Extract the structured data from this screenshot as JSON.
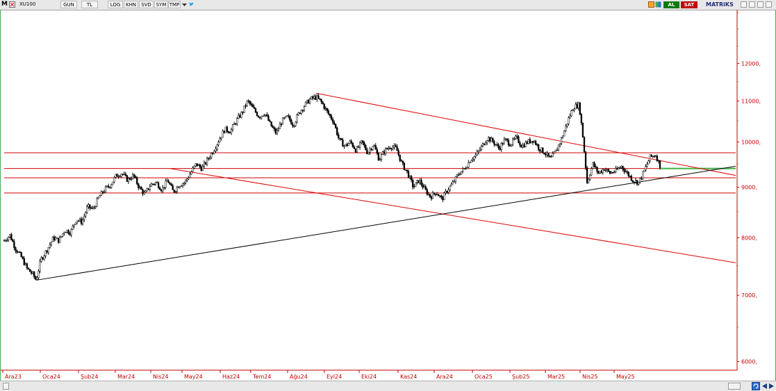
{
  "toolbar": {
    "app_letter": "M",
    "symbol": "XU100",
    "buttons": [
      {
        "name": "gun-button",
        "label": "GUN"
      },
      {
        "name": "tl-button",
        "label": "TL"
      },
      {
        "name": "log-button",
        "label": "LOG"
      },
      {
        "name": "khn-button",
        "label": "KHN"
      },
      {
        "name": "svd-button",
        "label": "SVD"
      },
      {
        "name": "sym-button",
        "label": "SYM"
      },
      {
        "name": "tmp-button",
        "label": "TMP"
      }
    ],
    "buy_label": "AL",
    "sell_label": "SAT",
    "brand": "MATRiKS"
  },
  "colors": {
    "candle": "#000000",
    "trendline_red": "#e00000",
    "support_line_black": "#000000",
    "horizontal_red": "#d00000",
    "current_green": "#3cb043",
    "axis_text": "#c00000",
    "frame_green": "#4caf50"
  },
  "chart_data": {
    "type": "candlestick",
    "symbol": "XU100",
    "x_ticks": [
      "Ara23",
      "Oca24",
      "Şub24",
      "Mar24",
      "Nis24",
      "May24",
      "Haz24",
      "Tem24",
      "Ağu24",
      "Eyl24",
      "Eki24",
      "Kas24",
      "Ara24",
      "Oca25",
      "Şub25",
      "Mar25",
      "Nis25",
      "May25"
    ],
    "y_ticks": [
      {
        "value": 6000,
        "label": "6000,"
      },
      {
        "value": 7000,
        "label": "7000,"
      },
      {
        "value": 8000,
        "label": "8000,"
      },
      {
        "value": 9000,
        "label": "9000,"
      },
      {
        "value": 10000,
        "label": "10000,"
      },
      {
        "value": 11000,
        "label": "11000,"
      },
      {
        "value": 12000,
        "label": "12000,"
      }
    ],
    "y_scale": "log",
    "ylim": [
      5900,
      13600
    ],
    "close_series": [
      {
        "t": 0.0,
        "v": 7950
      },
      {
        "t": 0.5,
        "v": 8050
      },
      {
        "t": 1.0,
        "v": 7800
      },
      {
        "t": 1.5,
        "v": 7650
      },
      {
        "t": 2.0,
        "v": 7450
      },
      {
        "t": 2.5,
        "v": 7350
      },
      {
        "t": 2.8,
        "v": 7250
      },
      {
        "t": 3.2,
        "v": 7600
      },
      {
        "t": 3.8,
        "v": 7800
      },
      {
        "t": 4.3,
        "v": 8000
      },
      {
        "t": 4.8,
        "v": 7950
      },
      {
        "t": 5.3,
        "v": 8150
      },
      {
        "t": 5.8,
        "v": 8100
      },
      {
        "t": 6.3,
        "v": 8350
      },
      {
        "t": 6.8,
        "v": 8300
      },
      {
        "t": 7.3,
        "v": 8600
      },
      {
        "t": 7.8,
        "v": 8550
      },
      {
        "t": 8.3,
        "v": 8800
      },
      {
        "t": 8.8,
        "v": 8950
      },
      {
        "t": 9.3,
        "v": 9050
      },
      {
        "t": 9.8,
        "v": 9250
      },
      {
        "t": 10.3,
        "v": 9300
      },
      {
        "t": 10.8,
        "v": 9150
      },
      {
        "t": 11.3,
        "v": 9250
      },
      {
        "t": 11.8,
        "v": 9000
      },
      {
        "t": 12.3,
        "v": 8850
      },
      {
        "t": 12.8,
        "v": 9050
      },
      {
        "t": 13.3,
        "v": 9100
      },
      {
        "t": 13.8,
        "v": 8950
      },
      {
        "t": 14.3,
        "v": 9150
      },
      {
        "t": 14.8,
        "v": 8900
      },
      {
        "t": 15.3,
        "v": 9050
      },
      {
        "t": 15.8,
        "v": 9100
      },
      {
        "t": 16.3,
        "v": 9300
      },
      {
        "t": 16.8,
        "v": 9500
      },
      {
        "t": 17.3,
        "v": 9400
      },
      {
        "t": 17.8,
        "v": 9600
      },
      {
        "t": 18.3,
        "v": 9800
      },
      {
        "t": 18.8,
        "v": 10050
      },
      {
        "t": 19.3,
        "v": 10300
      },
      {
        "t": 19.8,
        "v": 10250
      },
      {
        "t": 20.3,
        "v": 10500
      },
      {
        "t": 20.8,
        "v": 10700
      },
      {
        "t": 21.3,
        "v": 11000
      },
      {
        "t": 21.8,
        "v": 10800
      },
      {
        "t": 22.3,
        "v": 10600
      },
      {
        "t": 22.8,
        "v": 10700
      },
      {
        "t": 23.3,
        "v": 10400
      },
      {
        "t": 23.8,
        "v": 10200
      },
      {
        "t": 24.3,
        "v": 10500
      },
      {
        "t": 24.8,
        "v": 10600
      },
      {
        "t": 25.3,
        "v": 10400
      },
      {
        "t": 25.8,
        "v": 10700
      },
      {
        "t": 26.3,
        "v": 10900
      },
      {
        "t": 26.8,
        "v": 11050
      },
      {
        "t": 27.3,
        "v": 11100
      },
      {
        "t": 27.8,
        "v": 10950
      },
      {
        "t": 28.3,
        "v": 10700
      },
      {
        "t": 28.8,
        "v": 10500
      },
      {
        "t": 29.3,
        "v": 10050
      },
      {
        "t": 29.8,
        "v": 9900
      },
      {
        "t": 30.3,
        "v": 10000
      },
      {
        "t": 30.8,
        "v": 9800
      },
      {
        "t": 31.3,
        "v": 10000
      },
      {
        "t": 31.8,
        "v": 9750
      },
      {
        "t": 32.3,
        "v": 9950
      },
      {
        "t": 32.8,
        "v": 9600
      },
      {
        "t": 33.3,
        "v": 9800
      },
      {
        "t": 33.8,
        "v": 9900
      },
      {
        "t": 34.3,
        "v": 9850
      },
      {
        "t": 34.8,
        "v": 9500
      },
      {
        "t": 35.3,
        "v": 9300
      },
      {
        "t": 35.8,
        "v": 9000
      },
      {
        "t": 36.3,
        "v": 9150
      },
      {
        "t": 36.8,
        "v": 8950
      },
      {
        "t": 37.3,
        "v": 8800
      },
      {
        "t": 37.8,
        "v": 8900
      },
      {
        "t": 38.3,
        "v": 8750
      },
      {
        "t": 38.8,
        "v": 8950
      },
      {
        "t": 39.3,
        "v": 9100
      },
      {
        "t": 39.8,
        "v": 9300
      },
      {
        "t": 40.3,
        "v": 9400
      },
      {
        "t": 40.8,
        "v": 9600
      },
      {
        "t": 41.3,
        "v": 9700
      },
      {
        "t": 41.8,
        "v": 9900
      },
      {
        "t": 42.3,
        "v": 10100
      },
      {
        "t": 42.8,
        "v": 10000
      },
      {
        "t": 43.3,
        "v": 9850
      },
      {
        "t": 43.8,
        "v": 10050
      },
      {
        "t": 44.3,
        "v": 9950
      },
      {
        "t": 44.8,
        "v": 10100
      },
      {
        "t": 45.3,
        "v": 9900
      },
      {
        "t": 45.8,
        "v": 10000
      },
      {
        "t": 46.3,
        "v": 10050
      },
      {
        "t": 46.8,
        "v": 9850
      },
      {
        "t": 47.3,
        "v": 9750
      },
      {
        "t": 47.8,
        "v": 9600
      },
      {
        "t": 48.3,
        "v": 9800
      },
      {
        "t": 48.8,
        "v": 10100
      },
      {
        "t": 49.3,
        "v": 10500
      },
      {
        "t": 49.8,
        "v": 10850
      },
      {
        "t": 50.3,
        "v": 10900
      },
      {
        "t": 50.6,
        "v": 10200
      },
      {
        "t": 51.0,
        "v": 9100
      },
      {
        "t": 51.5,
        "v": 9500
      },
      {
        "t": 52.0,
        "v": 9300
      },
      {
        "t": 52.5,
        "v": 9400
      },
      {
        "t": 53.0,
        "v": 9300
      },
      {
        "t": 53.5,
        "v": 9350
      },
      {
        "t": 54.0,
        "v": 9450
      },
      {
        "t": 54.5,
        "v": 9300
      },
      {
        "t": 55.0,
        "v": 9150
      },
      {
        "t": 55.5,
        "v": 9100
      },
      {
        "t": 56.0,
        "v": 9350
      },
      {
        "t": 56.5,
        "v": 9650
      },
      {
        "t": 57.0,
        "v": 9700
      },
      {
        "t": 57.4,
        "v": 9450
      }
    ],
    "annotations": {
      "horizontal_levels": [
        9750,
        9400,
        9200,
        8880
      ],
      "current_level_green": 9400,
      "upper_trendline": {
        "from": {
          "t": 27.3,
          "v": 11200
        },
        "to": {
          "t": 64,
          "v": 9250
        }
      },
      "lower_trendline": {
        "from": {
          "t": 14.5,
          "v": 9400
        },
        "to": {
          "t": 64,
          "v": 7550
        }
      },
      "support_line": {
        "from": {
          "t": 2.8,
          "v": 7250
        },
        "to": {
          "t": 64,
          "v": 9450
        }
      }
    }
  }
}
